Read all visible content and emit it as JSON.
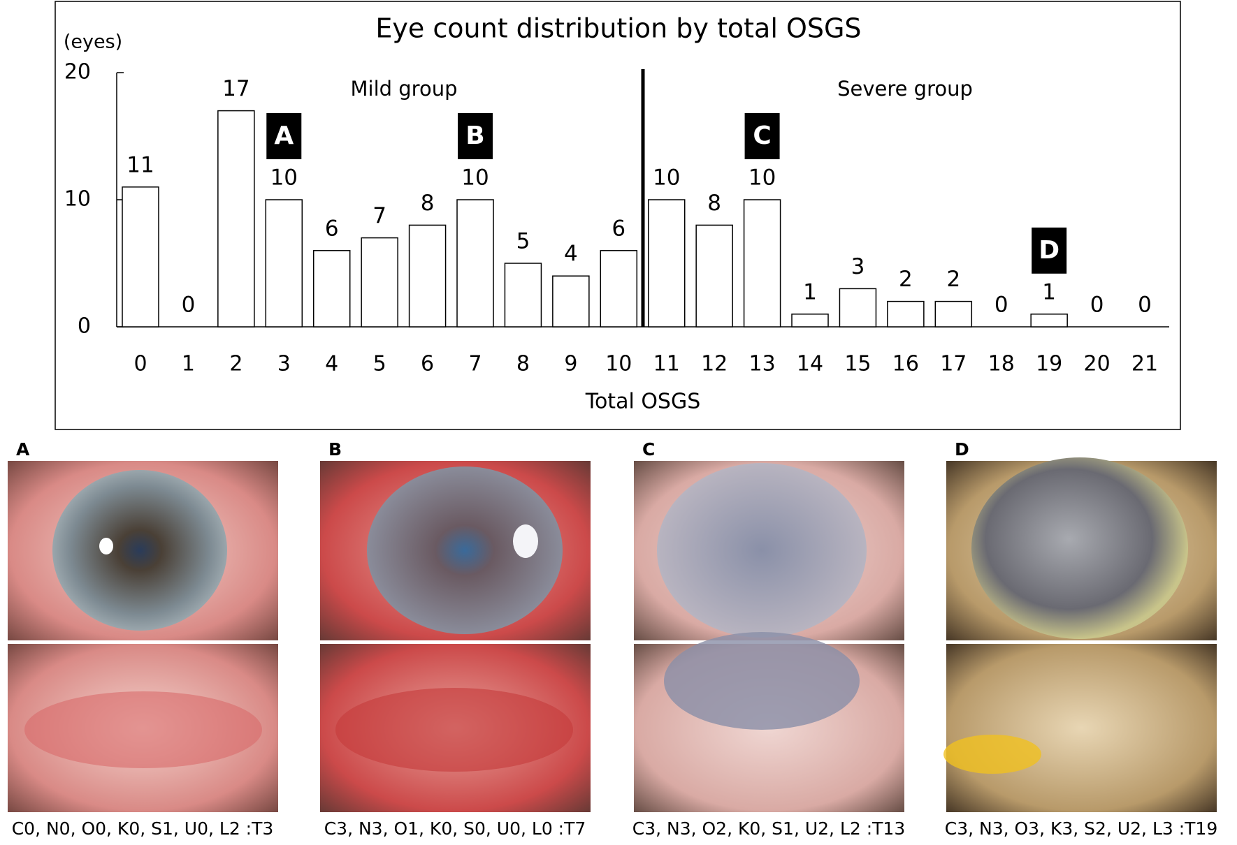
{
  "chart_data": {
    "type": "bar",
    "title": "Eye count distribution by total OSGS",
    "y_label": "(eyes)",
    "x_label": "Total OSGS",
    "categories": [
      "0",
      "1",
      "2",
      "3",
      "4",
      "5",
      "6",
      "7",
      "8",
      "9",
      "10",
      "11",
      "12",
      "13",
      "14",
      "15",
      "16",
      "17",
      "18",
      "19",
      "20",
      "21"
    ],
    "values": [
      11,
      0,
      17,
      10,
      6,
      7,
      8,
      10,
      5,
      4,
      6,
      10,
      8,
      10,
      1,
      3,
      2,
      2,
      0,
      1,
      0,
      0
    ],
    "color": "#ffffff",
    "ylim": [
      0,
      20
    ],
    "yticks": [
      0,
      10,
      20
    ],
    "groups": [
      "Mild group",
      "Severe group"
    ],
    "markers": [
      "A",
      "B",
      "C",
      "D"
    ]
  },
  "panels": [
    {
      "label": "A",
      "caption": "C0, N0, O0, K0, S1, U0, L2 :T3"
    },
    {
      "label": "B",
      "caption": "C3, N3, O1, K0, S0, U0, L0 :T7"
    },
    {
      "label": "C",
      "caption": "C3, N3, O2, K0, S1, U2, L2 :T13"
    },
    {
      "label": "D",
      "caption": "C3, N3, O3, K3, S2, U2, L3 :T19"
    }
  ]
}
